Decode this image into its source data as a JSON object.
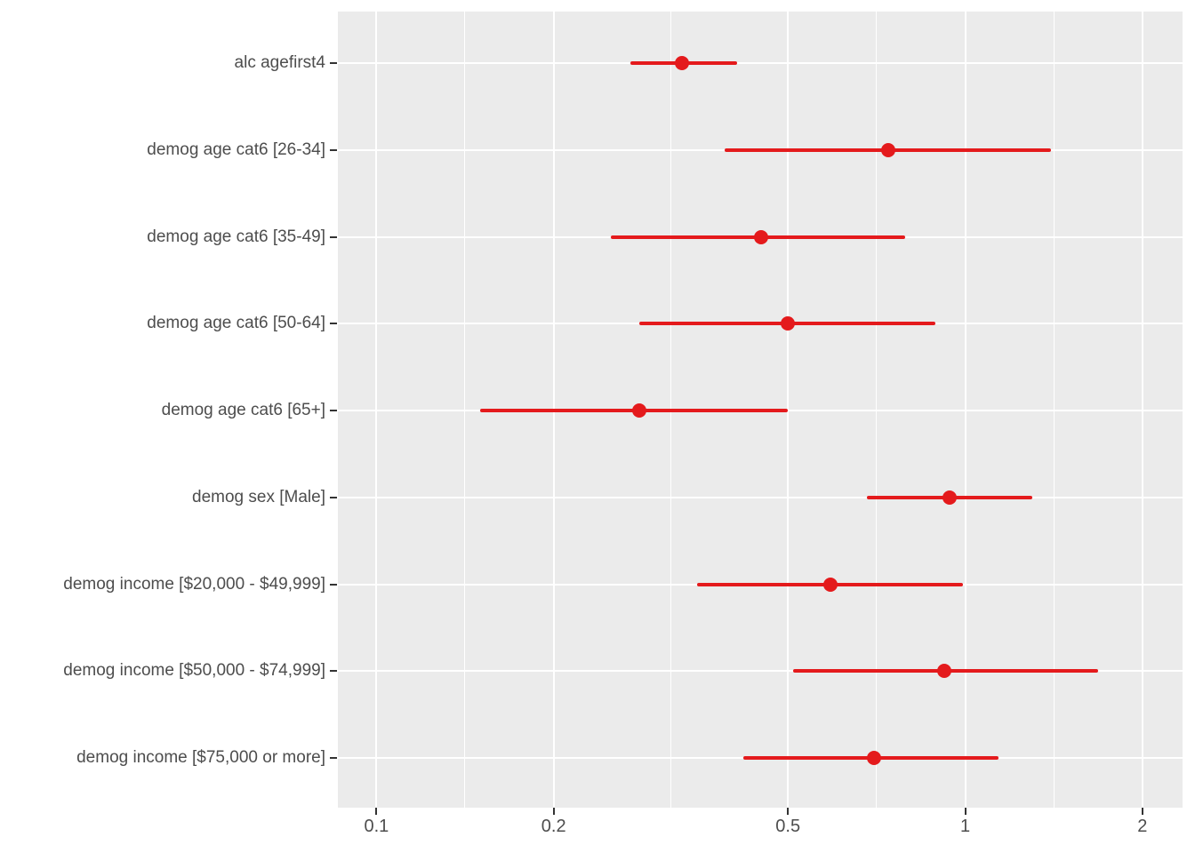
{
  "figure": {
    "background": "#FFFFFF"
  },
  "chart_data": {
    "type": "scatter",
    "subtype": "forest-dot-whisker",
    "title": "",
    "xlabel": "",
    "ylabel": "",
    "x_scale": "log10",
    "xlim": [
      0.086,
      2.34
    ],
    "x_major_ticks": [
      0.1,
      0.2,
      0.5,
      1,
      2
    ],
    "x_tick_labels": [
      "0.1",
      "0.2",
      "0.5",
      "1",
      "2"
    ],
    "x_minor_gridlines": [
      0.1414,
      0.3162,
      0.7071,
      1.4142
    ],
    "grid": "on",
    "legend": "none",
    "rows": [
      {
        "label": "alc agefirst4",
        "estimate": 0.33,
        "ci_low": 0.27,
        "ci_high": 0.41
      },
      {
        "label": "demog age cat6 [26-34]",
        "estimate": 0.74,
        "ci_low": 0.39,
        "ci_high": 1.4
      },
      {
        "label": "demog age cat6 [35-49]",
        "estimate": 0.45,
        "ci_low": 0.25,
        "ci_high": 0.79
      },
      {
        "label": "demog age cat6 [50-64]",
        "estimate": 0.5,
        "ci_low": 0.28,
        "ci_high": 0.89
      },
      {
        "label": "demog age cat6 [65+]",
        "estimate": 0.28,
        "ci_low": 0.15,
        "ci_high": 0.5
      },
      {
        "label": "demog sex [Male]",
        "estimate": 0.94,
        "ci_low": 0.68,
        "ci_high": 1.3
      },
      {
        "label": "demog income [$20,000 - $49,999]",
        "estimate": 0.59,
        "ci_low": 0.35,
        "ci_high": 0.99
      },
      {
        "label": "demog income [$50,000 - $74,999]",
        "estimate": 0.92,
        "ci_low": 0.51,
        "ci_high": 1.68
      },
      {
        "label": "demog income [$75,000 or more]",
        "estimate": 0.7,
        "ci_low": 0.42,
        "ci_high": 1.14
      }
    ],
    "colors": {
      "point": "#E41A1C",
      "ci_line": "#E41A1C",
      "panel_background": "#EBEBEB",
      "gridline": "#FFFFFF",
      "axis_text": "#4D4D4D",
      "tick_mark": "#333333",
      "figure_background": "#FFFFFF"
    }
  }
}
